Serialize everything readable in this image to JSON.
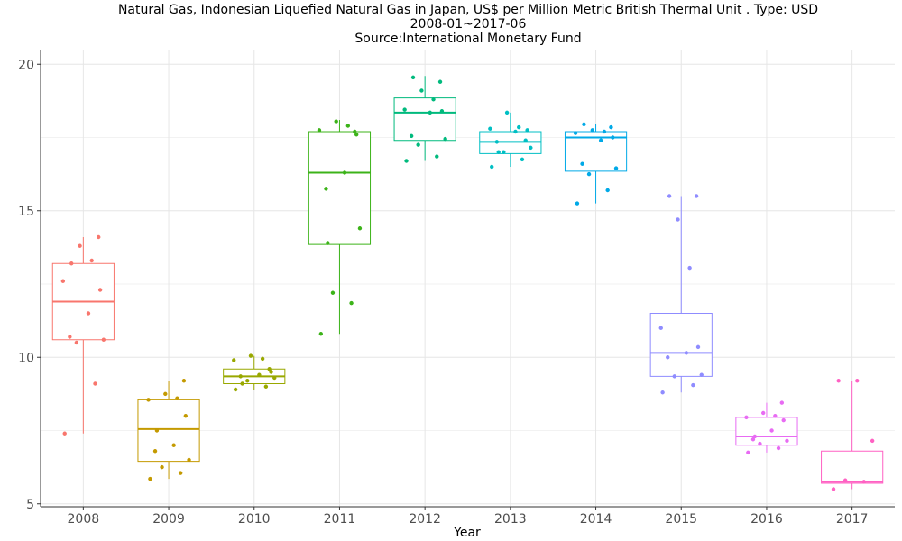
{
  "chart_data": {
    "type": "box",
    "title": "Natural Gas, Indonesian Liquefied Natural Gas in Japan, US$ per Million Metric British Thermal Unit . Type: USD",
    "subtitle": "2008-01~2017-06",
    "source": "Source:International Monetary Fund",
    "xlabel": "Year",
    "ylabel": "",
    "ylim": [
      4.9,
      20.5
    ],
    "yticks": [
      5,
      10,
      15,
      20
    ],
    "grid": true,
    "categories": [
      "2008",
      "2009",
      "2010",
      "2011",
      "2012",
      "2013",
      "2014",
      "2015",
      "2016",
      "2017"
    ],
    "colors": [
      "#F8766D",
      "#C49A00",
      "#99A800",
      "#3CB319",
      "#00BA7D",
      "#00BFC4",
      "#00A9E7",
      "#8F8CFF",
      "#E86BF3",
      "#FF61C3"
    ],
    "boxes": [
      {
        "min": 7.4,
        "q1": 10.6,
        "median": 11.9,
        "q3": 13.2,
        "max": 14.1
      },
      {
        "min": 5.85,
        "q1": 6.45,
        "median": 7.55,
        "q3": 8.55,
        "max": 9.2
      },
      {
        "min": 8.9,
        "q1": 9.1,
        "median": 9.35,
        "q3": 9.6,
        "max": 10.05
      },
      {
        "min": 10.8,
        "q1": 13.85,
        "median": 16.3,
        "q3": 17.7,
        "max": 18.1
      },
      {
        "min": 16.7,
        "q1": 17.4,
        "median": 18.35,
        "q3": 18.85,
        "max": 19.6
      },
      {
        "min": 16.5,
        "q1": 16.95,
        "median": 17.35,
        "q3": 17.7,
        "max": 18.35
      },
      {
        "min": 15.25,
        "q1": 16.35,
        "median": 17.5,
        "q3": 17.7,
        "max": 17.95
      },
      {
        "min": 8.8,
        "q1": 9.35,
        "median": 10.15,
        "q3": 11.5,
        "max": 15.5
      },
      {
        "min": 6.75,
        "q1": 7.0,
        "median": 7.3,
        "q3": 7.95,
        "max": 8.45
      },
      {
        "min": 5.5,
        "q1": 5.7,
        "median": 5.75,
        "q3": 6.8,
        "max": 9.2
      }
    ],
    "points": [
      [
        7.4,
        9.1,
        10.5,
        10.6,
        10.7,
        11.5,
        12.3,
        12.6,
        13.3,
        13.8,
        14.1,
        13.2
      ],
      [
        5.85,
        6.05,
        6.25,
        6.5,
        6.8,
        7.0,
        8.0,
        8.55,
        8.6,
        8.75,
        9.2,
        7.5
      ],
      [
        8.9,
        9.0,
        9.2,
        9.3,
        9.35,
        9.4,
        9.5,
        9.9,
        9.95,
        10.05,
        9.6,
        9.1
      ],
      [
        10.8,
        11.85,
        12.2,
        14.4,
        15.75,
        16.3,
        17.6,
        17.75,
        17.9,
        18.05,
        17.7,
        13.9
      ],
      [
        16.7,
        16.85,
        17.25,
        17.45,
        17.55,
        18.35,
        18.4,
        18.45,
        18.8,
        19.1,
        19.4,
        19.55
      ],
      [
        16.5,
        16.75,
        17.0,
        17.15,
        17.35,
        17.7,
        17.75,
        17.8,
        17.85,
        18.35,
        17.4,
        17.0
      ],
      [
        15.25,
        15.7,
        16.25,
        16.45,
        16.6,
        17.4,
        17.5,
        17.65,
        17.7,
        17.75,
        17.85,
        17.95
      ],
      [
        8.8,
        9.05,
        9.35,
        9.4,
        10.0,
        10.15,
        10.35,
        11.0,
        13.05,
        14.7,
        15.5,
        15.5
      ],
      [
        6.75,
        6.9,
        7.05,
        7.15,
        7.2,
        7.5,
        7.85,
        7.95,
        8.0,
        8.1,
        8.45,
        7.3
      ],
      [
        5.5,
        5.75,
        5.8,
        7.15,
        9.2,
        9.2
      ]
    ]
  }
}
